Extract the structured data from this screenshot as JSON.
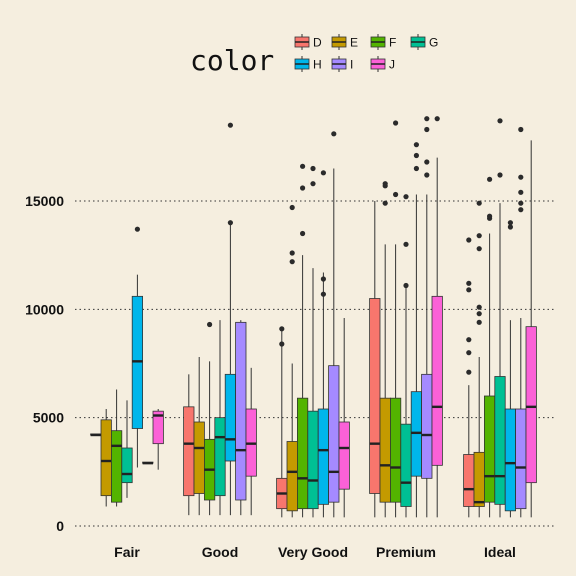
{
  "chart_data": {
    "type": "boxplot",
    "title": "",
    "xlabel": "",
    "ylabel": "",
    "categories": [
      "Fair",
      "Good",
      "Very Good",
      "Premium",
      "Ideal"
    ],
    "ylim": [
      -500,
      19000
    ],
    "yticks": [
      0,
      5000,
      10000,
      15000
    ],
    "grid": "horizontal-dotted",
    "legend": {
      "title": "color",
      "placement": "top",
      "entries": [
        "D",
        "E",
        "F",
        "G",
        "H",
        "I",
        "J"
      ]
    },
    "colors": {
      "D": "#f8766d",
      "E": "#c49a00",
      "F": "#53b400",
      "G": "#00c094",
      "H": "#00b6eb",
      "I": "#a58aff",
      "J": "#fb61d7"
    },
    "series": [
      {
        "name": "D",
        "boxes": [
          {
            "min": 4200,
            "q1": 4200,
            "median": 4200,
            "q3": 4250,
            "max": 4250,
            "outliers": []
          },
          {
            "min": 500,
            "q1": 1400,
            "median": 3800,
            "q3": 5500,
            "max": 7000,
            "outliers": []
          },
          {
            "min": 400,
            "q1": 800,
            "median": 1500,
            "q3": 2200,
            "max": 9000,
            "outliers": [
              8400,
              9100
            ]
          },
          {
            "min": 400,
            "q1": 1500,
            "median": 3800,
            "q3": 10500,
            "max": 15000,
            "outliers": []
          },
          {
            "min": 400,
            "q1": 900,
            "median": 1700,
            "q3": 3300,
            "max": 6500,
            "outliers": [
              7100,
              8000,
              8600,
              10900,
              11200,
              13200
            ]
          }
        ]
      },
      {
        "name": "E",
        "boxes": [
          {
            "min": 900,
            "q1": 1400,
            "median": 3000,
            "q3": 4900,
            "max": 5400,
            "outliers": []
          },
          {
            "min": 500,
            "q1": 1500,
            "median": 3600,
            "q3": 4800,
            "max": 7800,
            "outliers": []
          },
          {
            "min": 400,
            "q1": 700,
            "median": 2500,
            "q3": 3900,
            "max": 7500,
            "outliers": [
              12200,
              12600,
              14700
            ]
          },
          {
            "min": 400,
            "q1": 1100,
            "median": 2800,
            "q3": 5900,
            "max": 13000,
            "outliers": [
              14900,
              15700,
              15800
            ]
          },
          {
            "min": 400,
            "q1": 900,
            "median": 1100,
            "q3": 3400,
            "max": 7800,
            "outliers": [
              9400,
              9800,
              10100,
              12800,
              13400,
              14900
            ]
          }
        ]
      },
      {
        "name": "F",
        "boxes": [
          {
            "min": 900,
            "q1": 1100,
            "median": 3700,
            "q3": 4400,
            "max": 6300,
            "outliers": []
          },
          {
            "min": 500,
            "q1": 1200,
            "median": 2600,
            "q3": 4000,
            "max": 7600,
            "outliers": [
              9300
            ]
          },
          {
            "min": 400,
            "q1": 800,
            "median": 2200,
            "q3": 5900,
            "max": 12500,
            "outliers": [
              13500,
              15600,
              16600
            ]
          },
          {
            "min": 400,
            "q1": 1100,
            "median": 2700,
            "q3": 5900,
            "max": 13000,
            "outliers": [
              15300,
              18600
            ]
          },
          {
            "min": 400,
            "q1": 1100,
            "median": 2300,
            "q3": 6000,
            "max": 13500,
            "outliers": [
              14200,
              14300,
              16000
            ]
          }
        ]
      },
      {
        "name": "G",
        "boxes": [
          {
            "min": 1300,
            "q1": 2000,
            "median": 2400,
            "q3": 3600,
            "max": 5800,
            "outliers": []
          },
          {
            "min": 500,
            "q1": 1400,
            "median": 4100,
            "q3": 5000,
            "max": 9500,
            "outliers": []
          },
          {
            "min": 400,
            "q1": 800,
            "median": 2100,
            "q3": 5300,
            "max": 11900,
            "outliers": [
              15800,
              16500
            ]
          },
          {
            "min": 400,
            "q1": 900,
            "median": 2000,
            "q3": 4700,
            "max": 11000,
            "outliers": [
              11100,
              13000,
              15200
            ]
          },
          {
            "min": 400,
            "q1": 1000,
            "median": 2300,
            "q3": 6900,
            "max": 14900,
            "outliers": [
              16200,
              18700
            ]
          }
        ]
      },
      {
        "name": "H",
        "boxes": [
          {
            "min": 2700,
            "q1": 4500,
            "median": 7600,
            "q3": 10600,
            "max": 11600,
            "outliers": [
              13700
            ]
          },
          {
            "min": 500,
            "q1": 3000,
            "median": 4000,
            "q3": 7000,
            "max": 13900,
            "outliers": [
              14000,
              18500
            ]
          },
          {
            "min": 400,
            "q1": 1000,
            "median": 3500,
            "q3": 5400,
            "max": 11700,
            "outliers": [
              10700,
              11400,
              16300
            ]
          },
          {
            "min": 400,
            "q1": 2300,
            "median": 4300,
            "q3": 6200,
            "max": 15300,
            "outliers": [
              16500,
              17100,
              17600
            ]
          },
          {
            "min": 400,
            "q1": 700,
            "median": 2900,
            "q3": 5400,
            "max": 9500,
            "outliers": [
              13800,
              14000
            ]
          }
        ]
      },
      {
        "name": "I",
        "boxes": [
          {
            "min": 2900,
            "q1": 2900,
            "median": 2900,
            "q3": 2950,
            "max": 2950,
            "outliers": []
          },
          {
            "min": 500,
            "q1": 1200,
            "median": 3500,
            "q3": 9400,
            "max": 9500,
            "outliers": []
          },
          {
            "min": 400,
            "q1": 1100,
            "median": 2500,
            "q3": 7400,
            "max": 16500,
            "outliers": [
              18100
            ]
          },
          {
            "min": 400,
            "q1": 2200,
            "median": 4200,
            "q3": 7000,
            "max": 15300,
            "outliers": [
              16200,
              16800,
              18300,
              18800
            ]
          },
          {
            "min": 400,
            "q1": 800,
            "median": 2700,
            "q3": 5400,
            "max": 9600,
            "outliers": [
              14600,
              14900,
              15400,
              16100,
              18300
            ]
          }
        ]
      },
      {
        "name": "J",
        "boxes": [
          {
            "min": 2600,
            "q1": 3800,
            "median": 5100,
            "q3": 5300,
            "max": 5400,
            "outliers": []
          },
          {
            "min": 500,
            "q1": 2300,
            "median": 3800,
            "q3": 5400,
            "max": 7300,
            "outliers": []
          },
          {
            "min": 400,
            "q1": 1700,
            "median": 3600,
            "q3": 4800,
            "max": 9600,
            "outliers": []
          },
          {
            "min": 400,
            "q1": 2800,
            "median": 5500,
            "q3": 10600,
            "max": 17000,
            "outliers": [
              18800
            ]
          },
          {
            "min": 400,
            "q1": 2000,
            "median": 5500,
            "q3": 9200,
            "max": 17800,
            "outliers": []
          }
        ]
      }
    ]
  }
}
